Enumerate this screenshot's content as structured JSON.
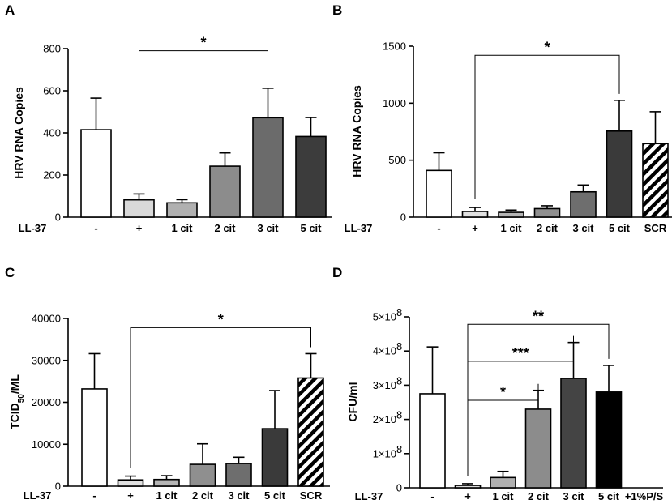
{
  "figure": {
    "panels": [
      "A",
      "B",
      "C",
      "D"
    ],
    "group_label": "LL-37"
  },
  "chart_data": [
    {
      "panel": "A",
      "type": "bar",
      "title": "",
      "xlabel": "",
      "ylabel": "HRV RNA Copies",
      "ylim": [
        0,
        800
      ],
      "yticks": [
        0,
        200,
        400,
        600,
        800
      ],
      "ytick_labels": [
        "0",
        "200",
        "400",
        "600",
        "800"
      ],
      "categories": [
        "-",
        "+",
        "1 cit",
        "2 cit",
        "3 cit",
        "5 cit"
      ],
      "values": [
        415,
        82,
        68,
        242,
        472,
        383
      ],
      "errors": [
        150,
        28,
        15,
        63,
        140,
        90
      ],
      "fills": [
        "#ffffff",
        "#d9d9d9",
        "#b0b0b0",
        "#8c8c8c",
        "#6b6b6b",
        "#3c3c3c"
      ],
      "patterns": [
        null,
        null,
        null,
        null,
        null,
        null
      ],
      "significance": [
        {
          "from": 1,
          "to": 4,
          "label": "*",
          "y": 790
        }
      ]
    },
    {
      "panel": "B",
      "type": "bar",
      "title": "",
      "xlabel": "",
      "ylabel": "HRV RNA Copies",
      "ylim": [
        0,
        1500
      ],
      "yticks": [
        0,
        500,
        1000,
        1500
      ],
      "ytick_labels": [
        "0",
        "500",
        "1000",
        "1500"
      ],
      "categories": [
        "-",
        "+",
        "1 cit",
        "2 cit",
        "3 cit",
        "5 cit",
        "SCR"
      ],
      "values": [
        410,
        50,
        42,
        75,
        222,
        755,
        645
      ],
      "errors": [
        155,
        35,
        20,
        25,
        60,
        270,
        280
      ],
      "fills": [
        "#ffffff",
        "#e0e0e0",
        "#b5b5b5",
        "#8f8f8f",
        "#6e6e6e",
        "#3a3a3a",
        "#ffffff"
      ],
      "patterns": [
        null,
        null,
        null,
        null,
        null,
        null,
        "hatch"
      ],
      "significance": [
        {
          "from": 1,
          "to": 5,
          "label": "*",
          "y": 1420
        }
      ]
    },
    {
      "panel": "C",
      "type": "bar",
      "title": "",
      "xlabel": "",
      "ylabel": "TCID50/ML",
      "ylabel_main": "TCID",
      "ylabel_sub": "50",
      "ylabel_tail": "/ML",
      "ylim": [
        0,
        40000
      ],
      "yticks": [
        0,
        10000,
        20000,
        30000,
        40000
      ],
      "ytick_labels": [
        "0",
        "10000",
        "20000",
        "30000",
        "40000"
      ],
      "categories": [
        "-",
        "+",
        "1 cit",
        "2 cit",
        "3 cit",
        "5 cit",
        "SCR"
      ],
      "values": [
        23200,
        1500,
        1600,
        5200,
        5400,
        13700,
        25800
      ],
      "errors": [
        8400,
        900,
        900,
        4900,
        1500,
        9100,
        5800
      ],
      "fills": [
        "#ffffff",
        "#e0e0e0",
        "#b5b5b5",
        "#8f8f8f",
        "#6e6e6e",
        "#3a3a3a",
        "#ffffff"
      ],
      "patterns": [
        null,
        null,
        null,
        null,
        null,
        null,
        "hatch"
      ],
      "significance": [
        {
          "from": 1,
          "to": 6,
          "label": "*",
          "y": 37800
        }
      ]
    },
    {
      "panel": "D",
      "type": "bar",
      "title": "",
      "xlabel": "",
      "ylabel": "CFU/ml",
      "ylim": [
        0,
        500000000
      ],
      "yticks": [
        0,
        100000000,
        200000000,
        300000000,
        400000000,
        500000000
      ],
      "ytick_labels": [
        "0",
        "1×10",
        "2×10",
        "3×10",
        "4×10",
        "5×10"
      ],
      "ytick_exponents": [
        "",
        "8",
        "8",
        "8",
        "8",
        "8"
      ],
      "categories": [
        "-",
        "+",
        "1 cit",
        "2 cit",
        "3 cit",
        "5 cit",
        "+1%P/S"
      ],
      "values": [
        275000000,
        7000000,
        30000000,
        230000000,
        320000000,
        280000000,
        0
      ],
      "errors": [
        137000000,
        5000000,
        18000000,
        55000000,
        105000000,
        78000000,
        0
      ],
      "fills": [
        "#ffffff",
        "#d9d9d9",
        "#b0b0b0",
        "#8c8c8c",
        "#444444",
        "#000000",
        "#ffffff"
      ],
      "patterns": [
        null,
        null,
        null,
        null,
        null,
        null,
        null
      ],
      "significance": [
        {
          "from": 1,
          "to": 3,
          "label": "*",
          "y": 256000000
        },
        {
          "from": 1,
          "to": 4,
          "label": "***",
          "y": 370000000
        },
        {
          "from": 1,
          "to": 5,
          "label": "**",
          "y": 478000000
        }
      ]
    }
  ]
}
